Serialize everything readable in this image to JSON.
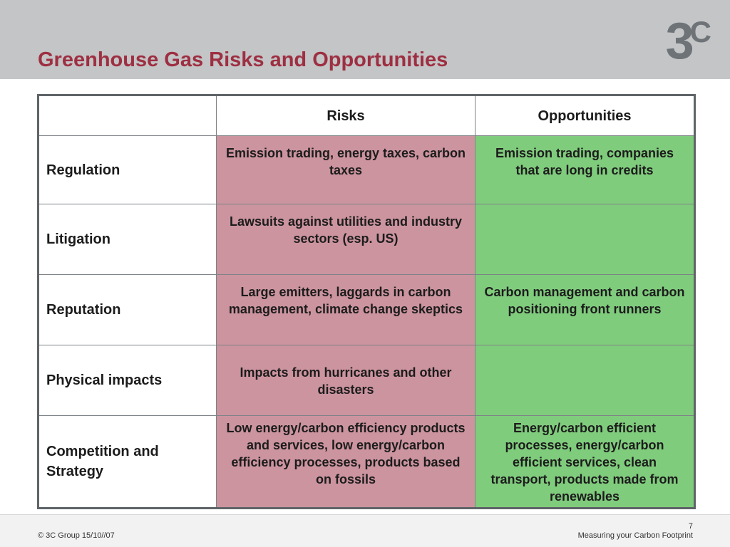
{
  "slide": {
    "title": "Greenhouse Gas Risks and Opportunities",
    "logo": {
      "digit": "3",
      "letter": "C"
    },
    "colors": {
      "header_band": "#c3c5c6",
      "title": "#9e2f42",
      "risk_cell": "#cc949f",
      "opportunity_cell": "#80cc7d",
      "logo": "#6e7378"
    }
  },
  "table": {
    "headers": {
      "corner": "",
      "risks": "Risks",
      "opportunities": "Opportunities"
    },
    "rows": [
      {
        "category": "Regulation",
        "risks": "Emission trading, energy taxes, carbon taxes",
        "opportunities": "Emission trading, companies that are long in credits"
      },
      {
        "category": "Litigation",
        "risks": "Lawsuits against utilities and industry sectors (esp. US)",
        "opportunities": ""
      },
      {
        "category": "Reputation",
        "risks": "Large emitters, laggards in carbon management, climate change skeptics",
        "opportunities": "Carbon management and carbon positioning front runners"
      },
      {
        "category": "Physical impacts",
        "risks": "Impacts from hurricanes and other disasters",
        "opportunities": ""
      },
      {
        "category": "Competition and Strategy",
        "risks": "Low energy/carbon efficiency products and services, low energy/carbon efficiency processes, products based on fossils",
        "opportunities": "Energy/carbon efficient processes, energy/carbon efficient services, clean transport, products made from renewables"
      }
    ]
  },
  "footer": {
    "copyright": "© 3C Group 15/10//07",
    "page_number": "7",
    "subtitle": "Measuring your Carbon Footprint"
  }
}
